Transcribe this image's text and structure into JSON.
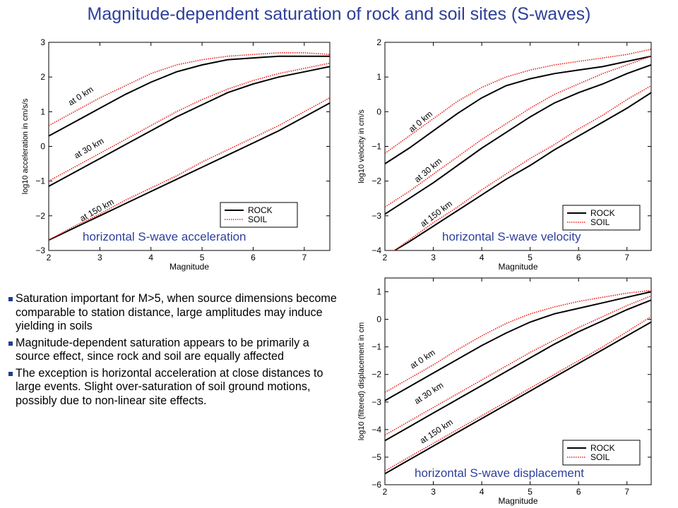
{
  "slide": {
    "title": "Magnitude-dependent  saturation of rock and soil sites (S-waves)",
    "bullets": [
      "Saturation important for M>5, when source dimensions become comparable to station distance, large amplitudes may induce yielding in soils",
      "Magnitude-dependent saturation appears to be primarily a source effect, since rock and soil are equally affected",
      "The exception is horizontal acceleration at close distances to large events. Slight over-saturation of soil ground motions, possibly due to non-linear site effects."
    ]
  },
  "colors": {
    "title": "#2e3f9b",
    "panel_caption": "#2e3f9b",
    "rock": "#000000",
    "soil": "#e8211b",
    "bullet": "#1f3d8a"
  },
  "chart_data": [
    {
      "type": "line",
      "panel_caption": "horizontal S-wave acceleration",
      "xlabel": "Magnitude",
      "ylabel": "log10 acceleration in cm/s/s",
      "xlim": [
        2,
        7.5
      ],
      "ylim": [
        -3,
        3
      ],
      "xticks": [
        2,
        3,
        4,
        5,
        6,
        7
      ],
      "yticks": [
        -3,
        -2,
        -1,
        0,
        1,
        2,
        3
      ],
      "legend": {
        "placement": "lower-right",
        "entries": [
          "ROCK",
          "SOIL"
        ]
      },
      "distance_labels": [
        "at 0 km",
        "at 30 km",
        "at 150 km"
      ],
      "series": [
        {
          "name": "ROCK",
          "distance": "at 0 km",
          "style": "solid",
          "x": [
            2,
            2.5,
            3,
            3.5,
            4,
            4.5,
            5,
            5.5,
            6,
            6.5,
            7,
            7.5
          ],
          "y": [
            0.3,
            0.7,
            1.1,
            1.5,
            1.85,
            2.15,
            2.35,
            2.5,
            2.55,
            2.6,
            2.6,
            2.6
          ]
        },
        {
          "name": "SOIL",
          "distance": "at 0 km",
          "style": "dotted",
          "x": [
            2,
            2.5,
            3,
            3.5,
            4,
            4.5,
            5,
            5.5,
            6,
            6.5,
            7,
            7.5
          ],
          "y": [
            0.6,
            1.0,
            1.4,
            1.75,
            2.1,
            2.35,
            2.5,
            2.6,
            2.65,
            2.7,
            2.7,
            2.65
          ]
        },
        {
          "name": "ROCK",
          "distance": "at 30 km",
          "style": "solid",
          "x": [
            2,
            2.5,
            3,
            3.5,
            4,
            4.5,
            5,
            5.5,
            6,
            6.5,
            7,
            7.5
          ],
          "y": [
            -1.15,
            -0.75,
            -0.35,
            0.05,
            0.45,
            0.85,
            1.2,
            1.55,
            1.8,
            2.0,
            2.15,
            2.3
          ]
        },
        {
          "name": "SOIL",
          "distance": "at 30 km",
          "style": "dotted",
          "x": [
            2,
            2.5,
            3,
            3.5,
            4,
            4.5,
            5,
            5.5,
            6,
            6.5,
            7,
            7.5
          ],
          "y": [
            -1.0,
            -0.6,
            -0.2,
            0.2,
            0.6,
            1.0,
            1.35,
            1.65,
            1.9,
            2.1,
            2.25,
            2.4
          ]
        },
        {
          "name": "ROCK",
          "distance": "at 150 km",
          "style": "solid",
          "x": [
            2,
            2.5,
            3,
            3.5,
            4,
            4.5,
            5,
            5.5,
            6,
            6.5,
            7,
            7.5
          ],
          "y": [
            -2.7,
            -2.35,
            -2.0,
            -1.65,
            -1.3,
            -0.95,
            -0.6,
            -0.25,
            0.1,
            0.45,
            0.85,
            1.25
          ]
        },
        {
          "name": "SOIL",
          "distance": "at 150 km",
          "style": "dotted",
          "x": [
            2,
            2.5,
            3,
            3.5,
            4,
            4.5,
            5,
            5.5,
            6,
            6.5,
            7,
            7.5
          ],
          "y": [
            -2.7,
            -2.3,
            -1.95,
            -1.55,
            -1.2,
            -0.85,
            -0.45,
            -0.1,
            0.25,
            0.6,
            1.0,
            1.4
          ]
        }
      ]
    },
    {
      "type": "line",
      "panel_caption": "horizontal S-wave velocity",
      "xlabel": "Magnitude",
      "ylabel": "log10 velocity in cm/s",
      "xlim": [
        2,
        7.5
      ],
      "ylim": [
        -4,
        2
      ],
      "xticks": [
        2,
        3,
        4,
        5,
        6,
        7
      ],
      "yticks": [
        -4,
        -3,
        -2,
        -1,
        0,
        1,
        2
      ],
      "legend": {
        "placement": "lower-right",
        "entries": [
          "ROCK",
          "SOIL"
        ]
      },
      "distance_labels": [
        "at 0 km",
        "at 30 km",
        "at 150 km"
      ],
      "series": [
        {
          "name": "ROCK",
          "distance": "at 0 km",
          "style": "solid",
          "x": [
            2,
            2.5,
            3,
            3.5,
            4,
            4.5,
            5,
            5.5,
            6,
            6.5,
            7,
            7.5
          ],
          "y": [
            -1.5,
            -1.05,
            -0.55,
            -0.05,
            0.4,
            0.75,
            0.95,
            1.1,
            1.2,
            1.3,
            1.45,
            1.6
          ]
        },
        {
          "name": "SOIL",
          "distance": "at 0 km",
          "style": "dotted",
          "x": [
            2,
            2.5,
            3,
            3.5,
            4,
            4.5,
            5,
            5.5,
            6,
            6.5,
            7,
            7.5
          ],
          "y": [
            -1.2,
            -0.7,
            -0.2,
            0.3,
            0.7,
            1.0,
            1.2,
            1.35,
            1.45,
            1.55,
            1.65,
            1.8
          ]
        },
        {
          "name": "ROCK",
          "distance": "at 30 km",
          "style": "solid",
          "x": [
            2,
            2.5,
            3,
            3.5,
            4,
            4.5,
            5,
            5.5,
            6,
            6.5,
            7,
            7.5
          ],
          "y": [
            -2.95,
            -2.5,
            -2.05,
            -1.55,
            -1.05,
            -0.6,
            -0.15,
            0.25,
            0.55,
            0.8,
            1.1,
            1.35
          ]
        },
        {
          "name": "SOIL",
          "distance": "at 30 km",
          "style": "dotted",
          "x": [
            2,
            2.5,
            3,
            3.5,
            4,
            4.5,
            5,
            5.5,
            6,
            6.5,
            7,
            7.5
          ],
          "y": [
            -2.75,
            -2.3,
            -1.8,
            -1.3,
            -0.8,
            -0.35,
            0.1,
            0.5,
            0.8,
            1.1,
            1.35,
            1.6
          ]
        },
        {
          "name": "ROCK",
          "distance": "at 150 km",
          "style": "solid",
          "x": [
            2.2,
            2.5,
            3,
            3.5,
            4,
            4.5,
            5,
            5.5,
            6,
            6.5,
            7,
            7.5
          ],
          "y": [
            -4.0,
            -3.75,
            -3.3,
            -2.85,
            -2.4,
            -1.95,
            -1.55,
            -1.1,
            -0.7,
            -0.3,
            0.1,
            0.55
          ]
        },
        {
          "name": "SOIL",
          "distance": "at 150 km",
          "style": "dotted",
          "x": [
            2.2,
            2.5,
            3,
            3.5,
            4,
            4.5,
            5,
            5.5,
            6,
            6.5,
            7,
            7.5
          ],
          "y": [
            -4.0,
            -3.7,
            -3.2,
            -2.75,
            -2.25,
            -1.8,
            -1.35,
            -0.95,
            -0.5,
            -0.1,
            0.35,
            0.75
          ]
        }
      ]
    },
    {
      "type": "line",
      "panel_caption": "horizontal S-wave displacement",
      "xlabel": "Magnitude",
      "ylabel": "log10 (filtered) displacement in cm",
      "xlim": [
        2,
        7.5
      ],
      "ylim": [
        -6,
        1.5
      ],
      "xticks": [
        2,
        3,
        4,
        5,
        6,
        7
      ],
      "yticks": [
        -6,
        -5,
        -4,
        -3,
        -2,
        -1,
        0,
        1
      ],
      "legend": {
        "placement": "lower-right",
        "entries": [
          "ROCK",
          "SOIL"
        ]
      },
      "distance_labels": [
        "at 0 km",
        "at 30 km",
        "at 150 km"
      ],
      "series": [
        {
          "name": "ROCK",
          "distance": "at 0 km",
          "style": "solid",
          "x": [
            2,
            2.5,
            3,
            3.5,
            4,
            4.5,
            5,
            5.5,
            6,
            6.5,
            7,
            7.5
          ],
          "y": [
            -2.95,
            -2.45,
            -1.95,
            -1.45,
            -0.95,
            -0.5,
            -0.1,
            0.2,
            0.4,
            0.6,
            0.8,
            1.0
          ]
        },
        {
          "name": "SOIL",
          "distance": "at 0 km",
          "style": "dotted",
          "x": [
            2,
            2.5,
            3,
            3.5,
            4,
            4.5,
            5,
            5.5,
            6,
            6.5,
            7,
            7.5
          ],
          "y": [
            -2.65,
            -2.15,
            -1.65,
            -1.1,
            -0.6,
            -0.15,
            0.2,
            0.45,
            0.65,
            0.8,
            0.95,
            1.05
          ]
        },
        {
          "name": "ROCK",
          "distance": "at 30 km",
          "style": "solid",
          "x": [
            2,
            2.5,
            3,
            3.5,
            4,
            4.5,
            5,
            5.5,
            6,
            6.5,
            7,
            7.5
          ],
          "y": [
            -4.4,
            -3.9,
            -3.4,
            -2.9,
            -2.4,
            -1.9,
            -1.4,
            -0.9,
            -0.45,
            -0.05,
            0.35,
            0.7
          ]
        },
        {
          "name": "SOIL",
          "distance": "at 30 km",
          "style": "dotted",
          "x": [
            2,
            2.5,
            3,
            3.5,
            4,
            4.5,
            5,
            5.5,
            6,
            6.5,
            7,
            7.5
          ],
          "y": [
            -4.2,
            -3.7,
            -3.2,
            -2.7,
            -2.2,
            -1.7,
            -1.2,
            -0.75,
            -0.3,
            0.1,
            0.5,
            0.85
          ]
        },
        {
          "name": "ROCK",
          "distance": "at 150 km",
          "style": "solid",
          "x": [
            2,
            2.5,
            3,
            3.5,
            4,
            4.5,
            5,
            5.5,
            6,
            6.5,
            7,
            7.5
          ],
          "y": [
            -5.6,
            -5.1,
            -4.6,
            -4.1,
            -3.6,
            -3.1,
            -2.6,
            -2.1,
            -1.6,
            -1.1,
            -0.6,
            -0.1
          ]
        },
        {
          "name": "SOIL",
          "distance": "at 150 km",
          "style": "dotted",
          "x": [
            2,
            2.5,
            3,
            3.5,
            4,
            4.5,
            5,
            5.5,
            6,
            6.5,
            7,
            7.5
          ],
          "y": [
            -5.5,
            -5.0,
            -4.5,
            -4.0,
            -3.5,
            -3.0,
            -2.5,
            -2.0,
            -1.5,
            -1.0,
            -0.45,
            0.1
          ]
        }
      ]
    }
  ]
}
